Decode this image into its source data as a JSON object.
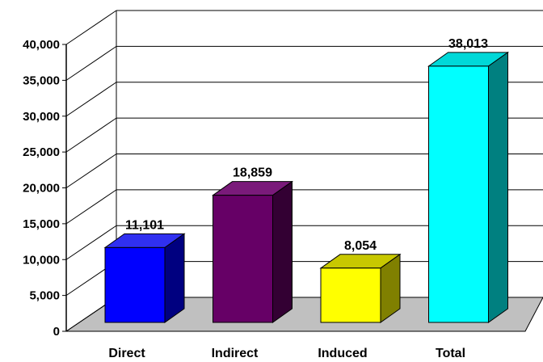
{
  "chart_data": {
    "type": "bar",
    "categories": [
      "Direct",
      "Indirect",
      "Induced",
      "Total"
    ],
    "values": [
      11101,
      18859,
      8054,
      38013
    ],
    "data_labels": [
      "11,101",
      "18,859",
      "8,054",
      "38,013"
    ],
    "y_ticks": [
      0,
      5000,
      10000,
      15000,
      20000,
      25000,
      30000,
      35000,
      40000
    ],
    "y_tick_labels": [
      "0",
      "5,000",
      "10,000",
      "15,000",
      "20,000",
      "25,000",
      "30,000",
      "35,000",
      "40,000"
    ],
    "ylim": [
      0,
      40000
    ],
    "grid": true,
    "legend": "none",
    "style": "3d",
    "colors": {
      "Direct": {
        "front": "#0000ff",
        "top": "#3030f0",
        "side": "#000080"
      },
      "Indirect": {
        "front": "#660066",
        "top": "#7a1a7a",
        "side": "#330033"
      },
      "Induced": {
        "front": "#ffff00",
        "top": "#c8c800",
        "side": "#808000"
      },
      "Total": {
        "front": "#00ffff",
        "top": "#00d8d8",
        "side": "#008080"
      },
      "floor": "#c0c0c0",
      "gridline": "#000000"
    }
  }
}
